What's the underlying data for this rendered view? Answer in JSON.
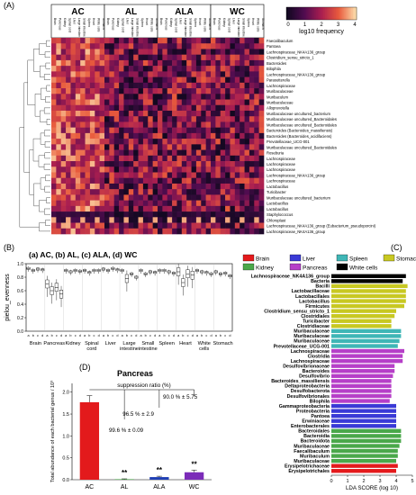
{
  "panel_a": {
    "label": "(A)",
    "groups": [
      "AC",
      "AL",
      "ALA",
      "WC"
    ],
    "tissue_columns": [
      "Brain",
      "Pancreas",
      "Kidney",
      "Spinal cord",
      "Liver",
      "Large intestine",
      "Small intestine",
      "Spleen",
      "Heart",
      "White cells",
      "Stomach"
    ],
    "colorbar_label": "log10 frequency",
    "colorbar_ticks": [
      "0",
      "1",
      "2",
      "3",
      "4"
    ],
    "taxa": [
      "Faecalibaculum",
      "Pantoea",
      "Lachnospiraceae_NK4A136_group",
      "Clostridium_sensu_stricto_1",
      "Bacteroides",
      "Bilophila",
      "Lachnospiraceae_NK4A136_group",
      "Parasutterella",
      "Lachnospiraceae",
      "Muribaculaceae",
      "Muribaculum",
      "Muribaculaceae",
      "Alloprevotella",
      "Muribaculaceae uncultured_bacterium",
      "Muribaculaceae uncultured_Bacteroidales",
      "Muribaculaceae uncultured_Bacteroidales",
      "Bacteroides (Bacteroides_massiliensis)",
      "Bacteroides (Bacteroides_acidifaciens)",
      "Prevotellaceae_UCG-001",
      "Muribaculaceae uncultured_Bacteroidales",
      "Roseburia",
      "Lachnospiraceae",
      "Lachnospiraceae",
      "Lachnospiraceae",
      "Lachnospiraceae_NK4A136_group",
      "Lachnospiraceae",
      "Lactobacillus",
      "Turicibacter",
      "Muribaculaceae uncultured_bacterium",
      "Lactobacillus",
      "Lactobacillus",
      "Staphylococcus",
      "Chloroplast",
      "Lachnospiraceae_NK4A136_group (Eubacterium_pseudoporcini)",
      "Lachnospiraceae_NK4A136_group"
    ]
  },
  "panel_b": {
    "label": "(B)",
    "legend": "(a) AC, (b) AL, (c) ALA, (d) WC",
    "ylabel": "pielou_evenness",
    "yticks": [
      "1.0",
      "0.8",
      "0.6",
      "0.4",
      "0.2",
      "0.0"
    ],
    "tissues": [
      "Brain",
      "Pancreas",
      "Kidney",
      "Spinal cord",
      "Liver",
      "Large intestine",
      "Small intestine",
      "Spleen",
      "Heart",
      "White cells",
      "Stomach"
    ],
    "sub_ticks": [
      "a",
      "b",
      "c",
      "d"
    ]
  },
  "panel_c": {
    "label": "(C)",
    "legend": [
      "Brain",
      "Liver",
      "Spleen",
      "Stomach",
      "Kidney",
      "Pancreas",
      "White cells"
    ],
    "xlabel": "LDA SCORE (log 10)",
    "xticks": [
      "0",
      "1",
      "2",
      "3",
      "4",
      "5"
    ],
    "colors": {
      "Brain": "#e41a1c",
      "Liver": "#3a3ad6",
      "Spleen": "#3fb6b6",
      "Stomach": "#c8c822",
      "Kidney": "#4aa84a",
      "Pancreas": "#b63fc8",
      "White cells": "#000000"
    },
    "bars": [
      {
        "name": "Lachnospiraceae_NK4A136_group",
        "value": 4.6,
        "group": "White cells"
      },
      {
        "name": "Bacteria",
        "value": 4.4,
        "group": "White cells"
      },
      {
        "name": "Bacilli",
        "value": 4.7,
        "group": "Stomach"
      },
      {
        "name": "Lactobacillaceae",
        "value": 4.6,
        "group": "Stomach"
      },
      {
        "name": "Lactobacillales",
        "value": 4.6,
        "group": "Stomach"
      },
      {
        "name": "Lactobacillus",
        "value": 4.6,
        "group": "Stomach"
      },
      {
        "name": "Firmicutes",
        "value": 4.5,
        "group": "Stomach"
      },
      {
        "name": "Clostridium_sensu_stricto_1",
        "value": 4.0,
        "group": "Stomach"
      },
      {
        "name": "Clostridiales",
        "value": 3.9,
        "group": "Stomach"
      },
      {
        "name": "Turicibacter",
        "value": 3.7,
        "group": "Stomach"
      },
      {
        "name": "Clostridiaceae",
        "value": 3.7,
        "group": "Stomach"
      },
      {
        "name": "Muribaculaceae",
        "value": 4.3,
        "group": "Spleen"
      },
      {
        "name": "Muribaculaceae",
        "value": 4.3,
        "group": "Spleen"
      },
      {
        "name": "Muribaculaceae",
        "value": 4.2,
        "group": "Spleen"
      },
      {
        "name": "Prevotellaceae_UCG-001",
        "value": 4.1,
        "group": "Spleen"
      },
      {
        "name": "Lachnospiraceae",
        "value": 4.5,
        "group": "Pancreas"
      },
      {
        "name": "Clostridia",
        "value": 4.4,
        "group": "Pancreas"
      },
      {
        "name": "Lachnospiraceae",
        "value": 4.4,
        "group": "Pancreas"
      },
      {
        "name": "Desulfovibrionaceae",
        "value": 3.9,
        "group": "Pancreas"
      },
      {
        "name": "Bacteroides",
        "value": 3.9,
        "group": "Pancreas"
      },
      {
        "name": "Desulfovibrio",
        "value": 3.8,
        "group": "Pancreas"
      },
      {
        "name": "Bacteroides_massiliensis",
        "value": 3.7,
        "group": "Pancreas"
      },
      {
        "name": "Deltaproteobacteria",
        "value": 3.7,
        "group": "Pancreas"
      },
      {
        "name": "Desulfobacterota",
        "value": 3.7,
        "group": "Pancreas"
      },
      {
        "name": "Desulfovibrionales",
        "value": 3.7,
        "group": "Pancreas"
      },
      {
        "name": "Bilophila",
        "value": 3.6,
        "group": "Pancreas"
      },
      {
        "name": "Gammaproteobacteria",
        "value": 4.0,
        "group": "Liver"
      },
      {
        "name": "Proteobacteria",
        "value": 4.0,
        "group": "Liver"
      },
      {
        "name": "Pantoea",
        "value": 4.0,
        "group": "Liver"
      },
      {
        "name": "Erwiniaceae",
        "value": 4.0,
        "group": "Liver"
      },
      {
        "name": "Enterobacterales",
        "value": 4.0,
        "group": "Liver"
      },
      {
        "name": "Bacteroidales",
        "value": 4.3,
        "group": "Kidney"
      },
      {
        "name": "Bacteroidia",
        "value": 4.3,
        "group": "Kidney"
      },
      {
        "name": "Bacteroidota",
        "value": 4.3,
        "group": "Kidney"
      },
      {
        "name": "Muribaculaceae",
        "value": 4.2,
        "group": "Kidney"
      },
      {
        "name": "Faecalibaculum",
        "value": 4.1,
        "group": "Kidney"
      },
      {
        "name": "Muribaculum",
        "value": 4.1,
        "group": "Kidney"
      },
      {
        "name": "Muribaculaceae",
        "value": 4.0,
        "group": "Kidney"
      },
      {
        "name": "Erysipelotrichaceae",
        "value": 4.1,
        "group": "Brain"
      },
      {
        "name": "Erysipelotrichales",
        "value": 4.0,
        "group": "Brain"
      }
    ]
  },
  "panel_d": {
    "label": "(D)",
    "title": "Pancreas",
    "ylabel": "Total abundance of each bacterial genus / 10³",
    "yticks": [
      "0.0",
      "0.5",
      "1.0",
      "1.5",
      "2.0"
    ],
    "suppression_title": "suppression ratio (%)",
    "annotations": [
      "90.0 % ± 5.75",
      "96.5 % ± 2.9",
      "99.6 % ± 0.09"
    ],
    "chart_data": {
      "type": "bar",
      "categories": [
        "AC",
        "AL",
        "ALA",
        "WC"
      ],
      "values": [
        1.77,
        0.01,
        0.06,
        0.17
      ],
      "errors": [
        0.15,
        0.01,
        0.02,
        0.05
      ],
      "significance": [
        "",
        "**",
        "**",
        "**"
      ],
      "colors": [
        "#e31a1c",
        "#2ca02c",
        "#1f3fb4",
        "#7b2bb8"
      ],
      "ylim": [
        0,
        2.2
      ]
    }
  }
}
